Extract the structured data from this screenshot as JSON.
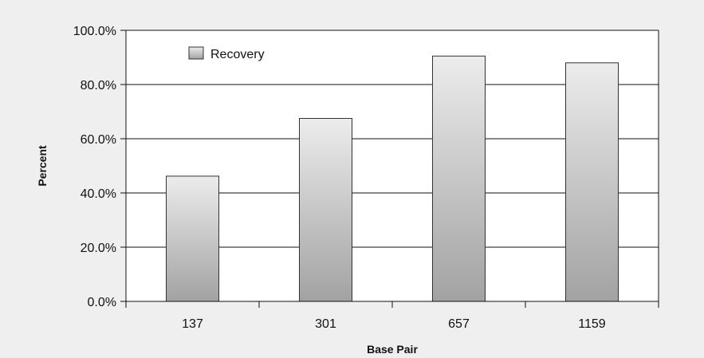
{
  "chart_data": {
    "type": "bar",
    "title": "",
    "xlabel": "Base Pair",
    "ylabel": "Percent",
    "categories": [
      "137",
      "301",
      "657",
      "1159"
    ],
    "series": [
      {
        "name": "Recovery",
        "values": [
          46.2,
          67.5,
          90.5,
          88.0
        ]
      }
    ],
    "ylim": [
      0,
      100
    ],
    "yticks": [
      0,
      20,
      40,
      60,
      80,
      100
    ],
    "ytick_labels": [
      "0.0%",
      "20.0%",
      "40.0%",
      "60.0%",
      "80.0%",
      "100.0%"
    ],
    "grid": true,
    "legend_position": "top-left"
  },
  "colors": {
    "background": "#efefef",
    "plot_area": "#ffffff",
    "gridline": "#111111",
    "bar_top": "#ececec",
    "bar_bottom": "#a2a2a2",
    "bar_border": "#333333"
  }
}
